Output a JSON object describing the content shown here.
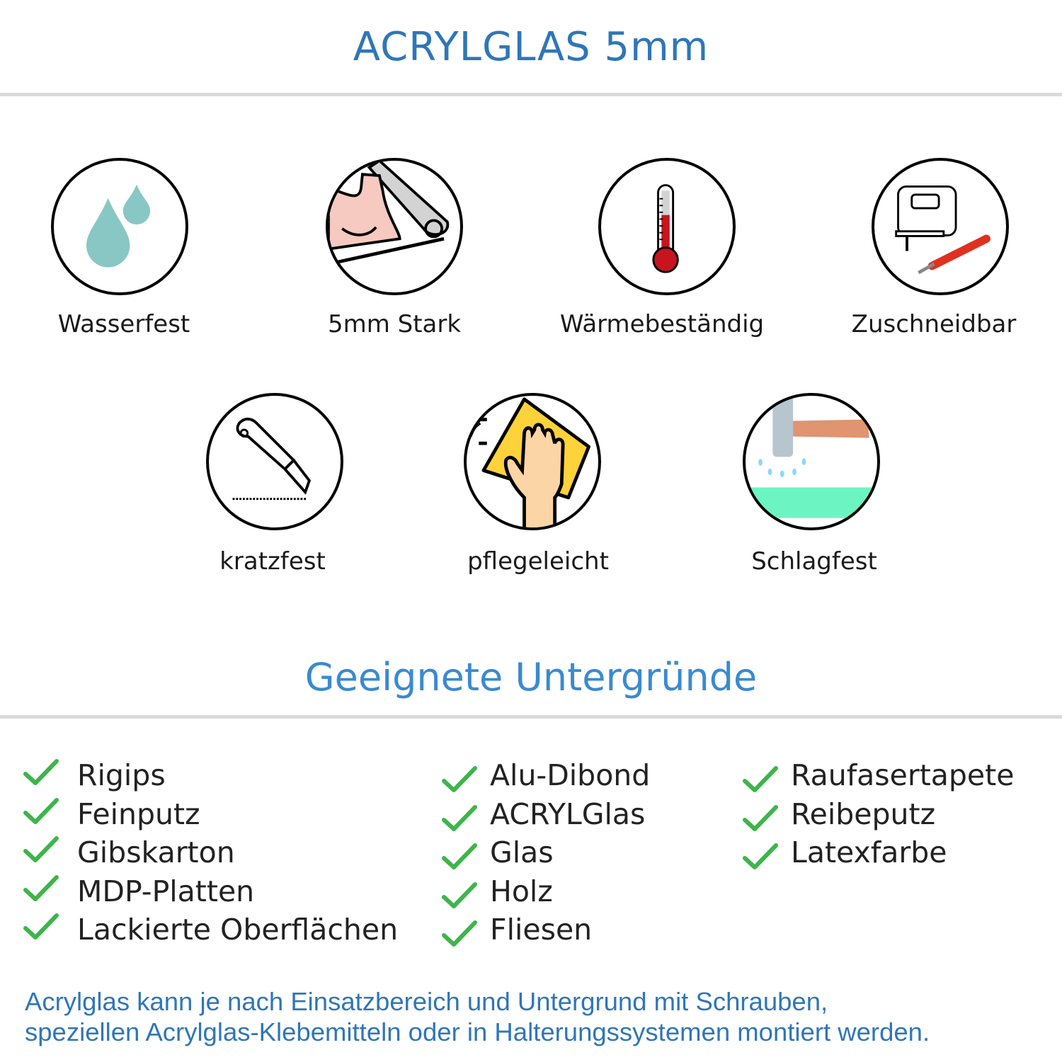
{
  "header": {
    "title": "ACRYLGLAS 5mm"
  },
  "features": [
    {
      "label": "Wasserfest",
      "icon": "water-drops-icon"
    },
    {
      "label": "5mm Stark",
      "icon": "strong-arm-icon"
    },
    {
      "label": "Wärmebeständig",
      "icon": "thermometer-icon"
    },
    {
      "label": "Zuschneidbar",
      "icon": "jigsaw-cutter-icon"
    },
    {
      "label": "kratzfest",
      "icon": "box-cutter-icon"
    },
    {
      "label": "pflegeleicht",
      "icon": "cleaning-hand-icon"
    },
    {
      "label": "Schlagfest",
      "icon": "hammer-icon"
    }
  ],
  "surfaces": {
    "title": "Geeignete Untergründe",
    "columns": [
      [
        "Rigips",
        "Feinputz",
        "Gibskarton",
        "MDP-Platten",
        "Lackierte Oberflächen"
      ],
      [
        "Alu-Dibond",
        "ACRYLGlas",
        "Glas",
        "Holz",
        "Fliesen"
      ],
      [
        "Raufasertapete",
        "Reibeputz",
        "Latexfarbe"
      ]
    ]
  },
  "footer": {
    "line1": "Acrylglas kann je nach Einsatzbereich und Untergrund mit Schrauben,",
    "line2": "speziellen Acrylglas-Klebemitteln oder in Halterungssystemen montiert werden."
  },
  "colors": {
    "title": "#2f76b8",
    "subtitle": "#3a8ad0",
    "check": "#3db54a",
    "divider": "#d9d9d9"
  }
}
